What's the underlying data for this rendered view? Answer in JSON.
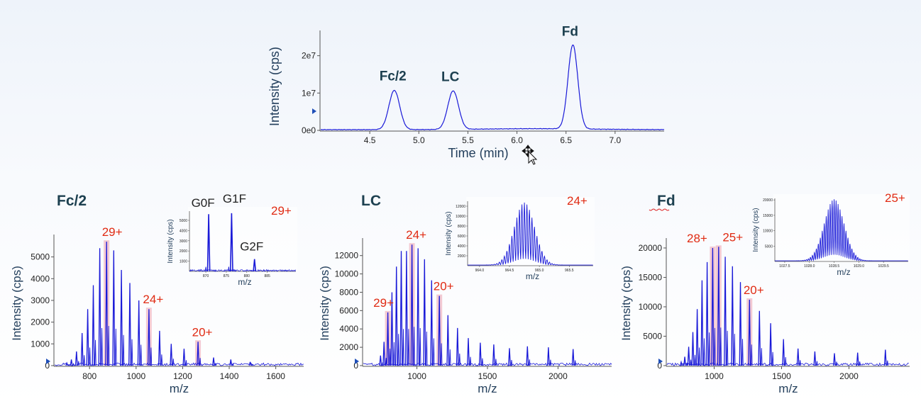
{
  "colors": {
    "trace": "#1a1ad8",
    "highlight": "#f0b8c4",
    "annotation_red": "#e02a12",
    "peak_label": "#1d4050",
    "axis_label": "#233f5c",
    "tick_text": "#222222",
    "arrow_marker": "#1f4fb8"
  },
  "icons": {
    "cursor": "move-cursor-icon"
  },
  "chart_data": [
    {
      "id": "chromatogram",
      "type": "line",
      "title": "",
      "xlabel": "Time (min)",
      "ylabel": "Intensity (cps)",
      "xlim": [
        4.0,
        7.5
      ],
      "ylim": [
        0,
        26000000
      ],
      "xticks": [
        4.5,
        5.0,
        5.5,
        6.0,
        6.5,
        7.0
      ],
      "xtick_labels": [
        "4.5",
        "5.0",
        "5.5",
        "6.0",
        "6.5",
        "7.0"
      ],
      "yticks": [
        0,
        10000000,
        20000000
      ],
      "ytick_labels": [
        "0e0",
        "1e7",
        "2e7"
      ],
      "baseline": 200000,
      "peaks": [
        {
          "label": "Fc/2",
          "x": 4.75,
          "y": 10500000,
          "width": 0.055
        },
        {
          "label": "LC",
          "x": 5.35,
          "y": 10300000,
          "width": 0.055
        },
        {
          "label": "Fd",
          "x": 6.57,
          "y": 22500000,
          "width": 0.05
        }
      ]
    },
    {
      "id": "fc2-spectrum",
      "type": "line",
      "title": "Fc/2",
      "xlabel": "m/z",
      "ylabel": "Intensity (cps)",
      "xlim": [
        650,
        1720
      ],
      "ylim": [
        0,
        5900
      ],
      "xticks": [
        800,
        1000,
        1200,
        1400,
        1600
      ],
      "xtick_labels": [
        "800",
        "1000",
        "1200",
        "1400",
        "1600"
      ],
      "yticks": [
        0,
        1000,
        2000,
        3000,
        4000,
        5000
      ],
      "ytick_labels": [
        "0",
        "1000",
        "2000",
        "3000",
        "4000",
        "5000"
      ],
      "charge_state_peaks": [
        {
          "x": 702,
          "y": 120
        },
        {
          "x": 722,
          "y": 280
        },
        {
          "x": 744,
          "y": 650
        },
        {
          "x": 768,
          "y": 1500
        },
        {
          "x": 792,
          "y": 2600
        },
        {
          "x": 816,
          "y": 3700
        },
        {
          "x": 844,
          "y": 5400
        },
        {
          "x": 873,
          "y": 5700
        },
        {
          "x": 904,
          "y": 5300
        },
        {
          "x": 937,
          "y": 4400
        },
        {
          "x": 973,
          "y": 3800
        },
        {
          "x": 1012,
          "y": 3000
        },
        {
          "x": 1055,
          "y": 2600
        },
        {
          "x": 1101,
          "y": 1600
        },
        {
          "x": 1151,
          "y": 1000
        },
        {
          "x": 1206,
          "y": 780
        },
        {
          "x": 1266,
          "y": 1100
        },
        {
          "x": 1333,
          "y": 370
        },
        {
          "x": 1407,
          "y": 280
        },
        {
          "x": 1490,
          "y": 170
        }
      ],
      "labels": [
        {
          "text": "29+",
          "x": 873,
          "y": 5700
        },
        {
          "text": "24+",
          "x": 1055,
          "y": 2600
        },
        {
          "text": "20+",
          "x": 1266,
          "y": 1100
        }
      ],
      "inset": {
        "title": "29+",
        "xlabel": "m/z",
        "ylabel": "Intensity (cps)",
        "xlim": [
          866,
          892
        ],
        "ylim": [
          0,
          5900
        ],
        "xticks": [
          870,
          875,
          880,
          885
        ],
        "xtick_labels": [
          "870",
          "875",
          "880",
          "885"
        ],
        "yticks": [
          1000,
          2000,
          3000,
          4000,
          5000
        ],
        "ytick_labels": [
          "1000",
          "2000",
          "3000",
          "4000",
          "5000"
        ],
        "peaks": [
          {
            "label": "G0F",
            "x": 870.7,
            "y": 5600
          },
          {
            "label": "G1F",
            "x": 876.3,
            "y": 5700
          },
          {
            "label": "G2F",
            "x": 881.9,
            "y": 1200
          }
        ]
      }
    },
    {
      "id": "lc-spectrum",
      "type": "line",
      "title": "LC",
      "xlabel": "m/z",
      "ylabel": "Intensity (cps)",
      "xlim": [
        620,
        2380
      ],
      "ylim": [
        0,
        13600
      ],
      "xticks": [
        1000,
        1500,
        2000
      ],
      "xtick_labels": [
        "1000",
        "1500",
        "2000"
      ],
      "yticks": [
        0,
        2000,
        4000,
        6000,
        8000,
        10000,
        12000
      ],
      "ytick_labels": [
        "0",
        "2000",
        "4000",
        "6000",
        "8000",
        "10000",
        "12000"
      ],
      "charge_state_peaks": [
        {
          "x": 742,
          "y": 1100
        },
        {
          "x": 767,
          "y": 2600
        },
        {
          "x": 794,
          "y": 5800
        },
        {
          "x": 823,
          "y": 8000
        },
        {
          "x": 855,
          "y": 10800
        },
        {
          "x": 889,
          "y": 12500
        },
        {
          "x": 926,
          "y": 12500
        },
        {
          "x": 965,
          "y": 13200
        },
        {
          "x": 1008,
          "y": 12800
        },
        {
          "x": 1054,
          "y": 11600
        },
        {
          "x": 1104,
          "y": 9300
        },
        {
          "x": 1159,
          "y": 7600
        },
        {
          "x": 1220,
          "y": 5500
        },
        {
          "x": 1288,
          "y": 4100
        },
        {
          "x": 1364,
          "y": 3000
        },
        {
          "x": 1449,
          "y": 2500
        },
        {
          "x": 1545,
          "y": 2300
        },
        {
          "x": 1656,
          "y": 1900
        },
        {
          "x": 1783,
          "y": 2100
        },
        {
          "x": 1932,
          "y": 2000
        },
        {
          "x": 2107,
          "y": 1800
        }
      ],
      "labels": [
        {
          "text": "29+",
          "x": 794,
          "y": 5800
        },
        {
          "text": "24+",
          "x": 965,
          "y": 13200
        },
        {
          "text": "20+",
          "x": 1159,
          "y": 7600
        }
      ],
      "inset": {
        "title": "24+",
        "xlabel": "m/z",
        "ylabel": "Intensity (cps)",
        "xlim": [
          963.8,
          965.9
        ],
        "ylim": [
          0,
          13000
        ],
        "center": 964.75,
        "spread": 0.17,
        "peak_height": 12600,
        "isotope_spacing": 0.042,
        "xticks": [
          964.0,
          964.5,
          965.0,
          965.5
        ],
        "xtick_labels": [
          "964.0",
          "964.5",
          "965.0",
          "965.5"
        ],
        "yticks": [
          2000,
          4000,
          6000,
          8000,
          10000,
          12000
        ],
        "ytick_labels": [
          "2000",
          "4000",
          "6000",
          "8000",
          "10000",
          "12000"
        ]
      }
    },
    {
      "id": "fd-spectrum",
      "type": "line",
      "title": "Fd",
      "xlabel": "m/z",
      "ylabel": "Intensity (cps)",
      "xlim": [
        650,
        2450
      ],
      "ylim": [
        0,
        21200
      ],
      "xticks": [
        1000,
        1500,
        2000
      ],
      "xtick_labels": [
        "1000",
        "1500",
        "2000"
      ],
      "yticks": [
        0,
        5000,
        10000,
        15000,
        20000
      ],
      "ytick_labels": [
        "0",
        "5000",
        "10000",
        "15000",
        "20000"
      ],
      "charge_state_peaks": [
        {
          "x": 755,
          "y": 600
        },
        {
          "x": 782,
          "y": 1500
        },
        {
          "x": 811,
          "y": 3200
        },
        {
          "x": 842,
          "y": 5700
        },
        {
          "x": 874,
          "y": 9600
        },
        {
          "x": 910,
          "y": 14500
        },
        {
          "x": 948,
          "y": 17600
        },
        {
          "x": 989,
          "y": 20000
        },
        {
          "x": 1033,
          "y": 20200
        },
        {
          "x": 1082,
          "y": 18500
        },
        {
          "x": 1136,
          "y": 16900
        },
        {
          "x": 1195,
          "y": 14200
        },
        {
          "x": 1262,
          "y": 11200
        },
        {
          "x": 1336,
          "y": 9300
        },
        {
          "x": 1419,
          "y": 7200
        },
        {
          "x": 1514,
          "y": 4500
        },
        {
          "x": 1622,
          "y": 2900
        },
        {
          "x": 1747,
          "y": 2400
        },
        {
          "x": 1892,
          "y": 2100
        },
        {
          "x": 2064,
          "y": 2200
        },
        {
          "x": 2270,
          "y": 2700
        }
      ],
      "labels": [
        {
          "text": "28+",
          "x": 989,
          "y": 20000
        },
        {
          "text": "25+",
          "x": 1033,
          "y": 20200
        },
        {
          "text": "20+",
          "x": 1262,
          "y": 11200
        }
      ],
      "inset": {
        "title": "25+",
        "xlabel": "m/z",
        "ylabel": "Intensity (cps)",
        "xlim": [
          1027.3,
          1030.0
        ],
        "ylim": [
          0,
          20500
        ],
        "center": 1028.5,
        "spread": 0.2,
        "peak_height": 20000,
        "isotope_spacing": 0.04,
        "xticks": [
          1027.5,
          1028.0,
          1028.5,
          1029.0,
          1029.5
        ],
        "xtick_labels": [
          "1027.5",
          "1028.0",
          "1028.5",
          "1029.0",
          "1029.5"
        ],
        "yticks": [
          5000,
          10000,
          15000,
          20000
        ],
        "ytick_labels": [
          "5000",
          "10000",
          "15000",
          "20000"
        ]
      }
    }
  ]
}
